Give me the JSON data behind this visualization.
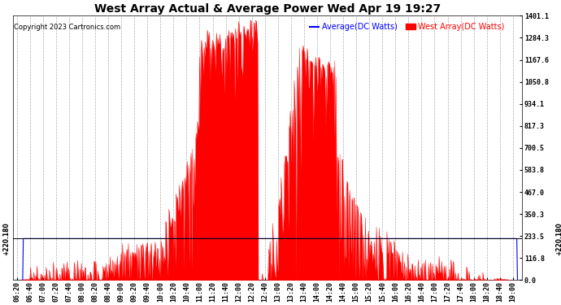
{
  "title": "West Array Actual & Average Power Wed Apr 19 19:27",
  "copyright": "Copyright 2023 Cartronics.com",
  "legend_avg": "Average(DC Watts)",
  "legend_west": "West Array(DC Watts)",
  "avg_color": "blue",
  "west_color": "red",
  "background_color": "#ffffff",
  "ymin": 0.0,
  "ymax": 1401.1,
  "yticks": [
    0.0,
    116.8,
    233.5,
    350.3,
    467.0,
    583.8,
    700.5,
    817.3,
    934.1,
    1050.8,
    1167.6,
    1284.3,
    1401.1
  ],
  "hline_value": 220.18,
  "hline_label": "+220.180",
  "grid_color": "#999999",
  "title_fontsize": 10,
  "tick_fontsize": 6,
  "legend_fontsize": 7,
  "copyright_fontsize": 6
}
